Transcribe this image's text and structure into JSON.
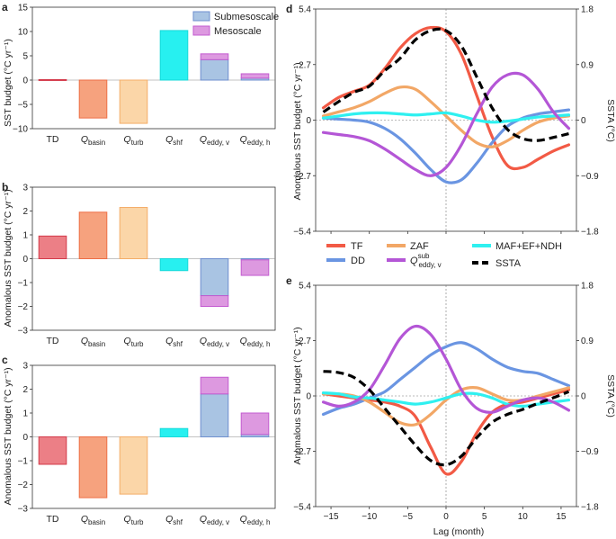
{
  "colors": {
    "TD": "#ec7f86",
    "Qbasin": "#f6a27e",
    "Qturb": "#fbd6a8",
    "Qshf": "#27f0f0",
    "submeso": "#a9c4e3",
    "meso": "#dd99e0",
    "TD_edge": "#d43a4a",
    "Qbasin_edge": "#ee6e45",
    "Qturb_edge": "#f4ad68",
    "Qshf_edge": "#16d9d9",
    "submeso_edge": "#6e8fcf",
    "meso_edge": "#c35bd0",
    "TF": "#f25a45",
    "DD": "#6a95e2",
    "ZAF": "#f2a766",
    "MAF": "#2ff0f0",
    "QEDDY": "#b456d6",
    "SSTA": "#000000"
  },
  "chart_data": [
    {
      "panel": "a",
      "type": "bar",
      "ylabel": "SST budget (°C yr⁻¹)",
      "ylim": [
        -10,
        15
      ],
      "yticks": [
        "−10",
        "−5",
        "0",
        "5",
        "10",
        "15"
      ],
      "categories": [
        "TD",
        "Q_basin",
        "Q_turb",
        "Q_shf",
        "Q_eddy, v",
        "Q_eddy, h"
      ],
      "cat_main": [
        "TD",
        "Q",
        "Q",
        "Q",
        "Q",
        "Q"
      ],
      "cat_sub": [
        "",
        "basin",
        "turb",
        "shf",
        "eddy, v",
        "eddy, h"
      ],
      "values": [
        0.1,
        -7.8,
        -8.9,
        10.2,
        5.4,
        1.3
      ],
      "legend": {
        "submeso": "Submesoscale",
        "meso": "Mesoscale"
      },
      "eddy_split": {
        "Q_eddy, v": {
          "submeso": 4.2,
          "meso": 1.2
        },
        "Q_eddy, h": {
          "submeso": 0.4,
          "meso": 0.9
        }
      }
    },
    {
      "panel": "b",
      "type": "bar",
      "ylabel": "Anomalous SST budget (°C yr⁻¹)",
      "ylim": [
        -3,
        3
      ],
      "yticks": [
        "−3",
        "−2",
        "−1",
        "0",
        "1",
        "2",
        "3"
      ],
      "categories": [
        "TD",
        "Q_basin",
        "Q_turb",
        "Q_shf",
        "Q_eddy, v",
        "Q_eddy, h"
      ],
      "cat_main": [
        "TD",
        "Q",
        "Q",
        "Q",
        "Q",
        "Q"
      ],
      "cat_sub": [
        "",
        "basin",
        "turb",
        "shf",
        "eddy, v",
        "eddy, h"
      ],
      "values": [
        0.95,
        1.95,
        2.15,
        -0.5,
        -2.0,
        -0.7
      ],
      "eddy_split": {
        "Q_eddy, v": {
          "submeso": -1.55,
          "meso": -0.45
        },
        "Q_eddy, h": {
          "submeso": -0.05,
          "meso": -0.65
        }
      }
    },
    {
      "panel": "c",
      "type": "bar",
      "ylabel": "Anomalous SST budget (°C yr⁻¹)",
      "ylim": [
        -3,
        3
      ],
      "yticks": [
        "−3",
        "−2",
        "−1",
        "0",
        "1",
        "2",
        "3"
      ],
      "categories": [
        "TD",
        "Q_basin",
        "Q_turb",
        "Q_shf",
        "Q_eddy, v",
        "Q_eddy, h"
      ],
      "cat_main": [
        "TD",
        "Q",
        "Q",
        "Q",
        "Q",
        "Q"
      ],
      "cat_sub": [
        "",
        "basin",
        "turb",
        "shf",
        "eddy, v",
        "eddy, h"
      ],
      "values": [
        -1.15,
        -2.55,
        -2.4,
        0.35,
        2.5,
        1.0
      ],
      "eddy_split": {
        "Q_eddy, v": {
          "submeso": 1.8,
          "meso": 0.7
        },
        "Q_eddy, h": {
          "submeso": 0.1,
          "meso": 0.9
        }
      }
    },
    {
      "panel": "d",
      "type": "line",
      "ylabel": "Anomalous SST budget (°C yr⁻¹)",
      "y2label": "SSTA (°C)",
      "ylim": [
        -5.4,
        5.4
      ],
      "y2lim": [
        -1.8,
        1.8
      ],
      "yticks": [
        "−5.4",
        "−2.7",
        "0",
        "2.7",
        "5.4"
      ],
      "y2ticks": [
        "−1.8",
        "−0.9",
        "0",
        "0.9",
        "1.8"
      ],
      "x": [
        -16,
        -14,
        -12,
        -10,
        -8,
        -6,
        -4,
        -2,
        0,
        2,
        4,
        6,
        8,
        10,
        12,
        14,
        16
      ],
      "series": [
        {
          "key": "TF",
          "name": "TF",
          "values": [
            0.6,
            1.1,
            1.4,
            1.7,
            2.5,
            3.5,
            4.2,
            4.5,
            4.3,
            3.2,
            1.2,
            -0.8,
            -2.2,
            -2.3,
            -1.9,
            -1.5,
            -1.2
          ]
        },
        {
          "key": "DD",
          "name": "DD",
          "values": [
            0.1,
            0.05,
            0.0,
            -0.1,
            -0.4,
            -0.9,
            -1.6,
            -2.4,
            -3.0,
            -2.9,
            -2.1,
            -1.1,
            -0.3,
            0.1,
            0.3,
            0.4,
            0.5
          ]
        },
        {
          "key": "ZAF",
          "name": "ZAF",
          "values": [
            0.2,
            0.4,
            0.6,
            0.9,
            1.3,
            1.6,
            1.5,
            0.9,
            0.2,
            -0.5,
            -1.1,
            -1.3,
            -1.0,
            -0.5,
            -0.1,
            0.1,
            0.2
          ]
        },
        {
          "key": "MAF",
          "name": "MAF+EF+NDH",
          "values": [
            0.1,
            0.2,
            0.3,
            0.35,
            0.35,
            0.3,
            0.25,
            0.3,
            0.35,
            0.2,
            0.0,
            -0.1,
            -0.05,
            0.05,
            0.15,
            0.2,
            0.25
          ]
        },
        {
          "key": "QEDDY",
          "name": "Q_eddy, v^sub",
          "values": [
            -0.6,
            -0.7,
            -0.8,
            -1.0,
            -1.4,
            -1.9,
            -2.4,
            -2.7,
            -2.3,
            -1.2,
            0.3,
            1.6,
            2.2,
            2.2,
            1.5,
            0.4,
            -0.4
          ]
        },
        {
          "key": "SSTA",
          "name": "SSTA",
          "dashed": true,
          "axis": "right",
          "values": [
            0.13,
            0.3,
            0.45,
            0.55,
            0.8,
            1.0,
            1.3,
            1.45,
            1.45,
            1.2,
            0.7,
            0.2,
            -0.15,
            -0.3,
            -0.33,
            -0.28,
            -0.22
          ]
        }
      ]
    },
    {
      "panel": "e",
      "type": "line",
      "ylabel": "Anomalous SST budget (°C yr⁻¹)",
      "y2label": "SSTA (°C)",
      "xlabel": "Lag (month)",
      "ylim": [
        -5.4,
        5.4
      ],
      "y2lim": [
        -1.8,
        1.8
      ],
      "yticks": [
        "−5.4",
        "−2.7",
        "0",
        "2.7",
        "5.4"
      ],
      "y2ticks": [
        "−1.8",
        "−0.9",
        "0",
        "0.9",
        "1.8"
      ],
      "xticks": [
        "−15",
        "−10",
        "−5",
        "0",
        "5",
        "10",
        "15"
      ],
      "x": [
        -16,
        -14,
        -12,
        -10,
        -8,
        -6,
        -4,
        -2,
        0,
        2,
        4,
        6,
        8,
        10,
        12,
        14,
        16
      ],
      "series": [
        {
          "key": "TF",
          "name": "TF",
          "values": [
            0.1,
            0.0,
            -0.1,
            -0.2,
            -0.3,
            -0.5,
            -1.0,
            -2.5,
            -3.8,
            -3.2,
            -1.8,
            -0.8,
            -0.4,
            -0.3,
            -0.1,
            0.1,
            0.3
          ]
        },
        {
          "key": "DD",
          "name": "DD",
          "values": [
            -0.9,
            -0.6,
            -0.4,
            -0.1,
            0.2,
            0.8,
            1.4,
            2.0,
            2.4,
            2.6,
            2.3,
            1.8,
            1.4,
            1.2,
            1.1,
            0.8,
            0.5
          ]
        },
        {
          "key": "ZAF",
          "name": "ZAF",
          "values": [
            0.1,
            0.1,
            0.0,
            -0.3,
            -0.8,
            -1.3,
            -1.4,
            -0.9,
            -0.2,
            0.3,
            0.4,
            0.1,
            -0.2,
            -0.2,
            0.0,
            0.2,
            0.4
          ]
        },
        {
          "key": "MAF",
          "name": "MAF+EF+NDH",
          "values": [
            0.15,
            0.1,
            -0.05,
            -0.1,
            -0.2,
            -0.3,
            -0.4,
            -0.3,
            -0.1,
            0.1,
            0.1,
            -0.1,
            -0.4,
            -0.5,
            -0.4,
            -0.3,
            -0.2
          ]
        },
        {
          "key": "QEDDY",
          "name": "Q_eddy, v^sub",
          "values": [
            -0.3,
            -0.5,
            -0.3,
            0.3,
            1.5,
            2.8,
            3.4,
            3.0,
            1.8,
            0.3,
            -0.6,
            -0.8,
            -0.5,
            -0.2,
            -0.1,
            -0.3,
            -0.7
          ]
        },
        {
          "key": "SSTA",
          "name": "SSTA",
          "dashed": true,
          "axis": "right",
          "values": [
            0.4,
            0.38,
            0.3,
            0.1,
            -0.2,
            -0.5,
            -0.8,
            -1.05,
            -1.12,
            -0.98,
            -0.68,
            -0.43,
            -0.3,
            -0.22,
            -0.12,
            -0.03,
            0.07
          ]
        }
      ]
    }
  ],
  "legend_line": {
    "TF": "TF",
    "DD": "DD",
    "ZAF": "ZAF",
    "QEDDY_main": "Q",
    "QEDDY_sup": "sub",
    "QEDDY_sub": "eddy, v",
    "MAF": "MAF+EF+NDH",
    "SSTA": "SSTA"
  }
}
